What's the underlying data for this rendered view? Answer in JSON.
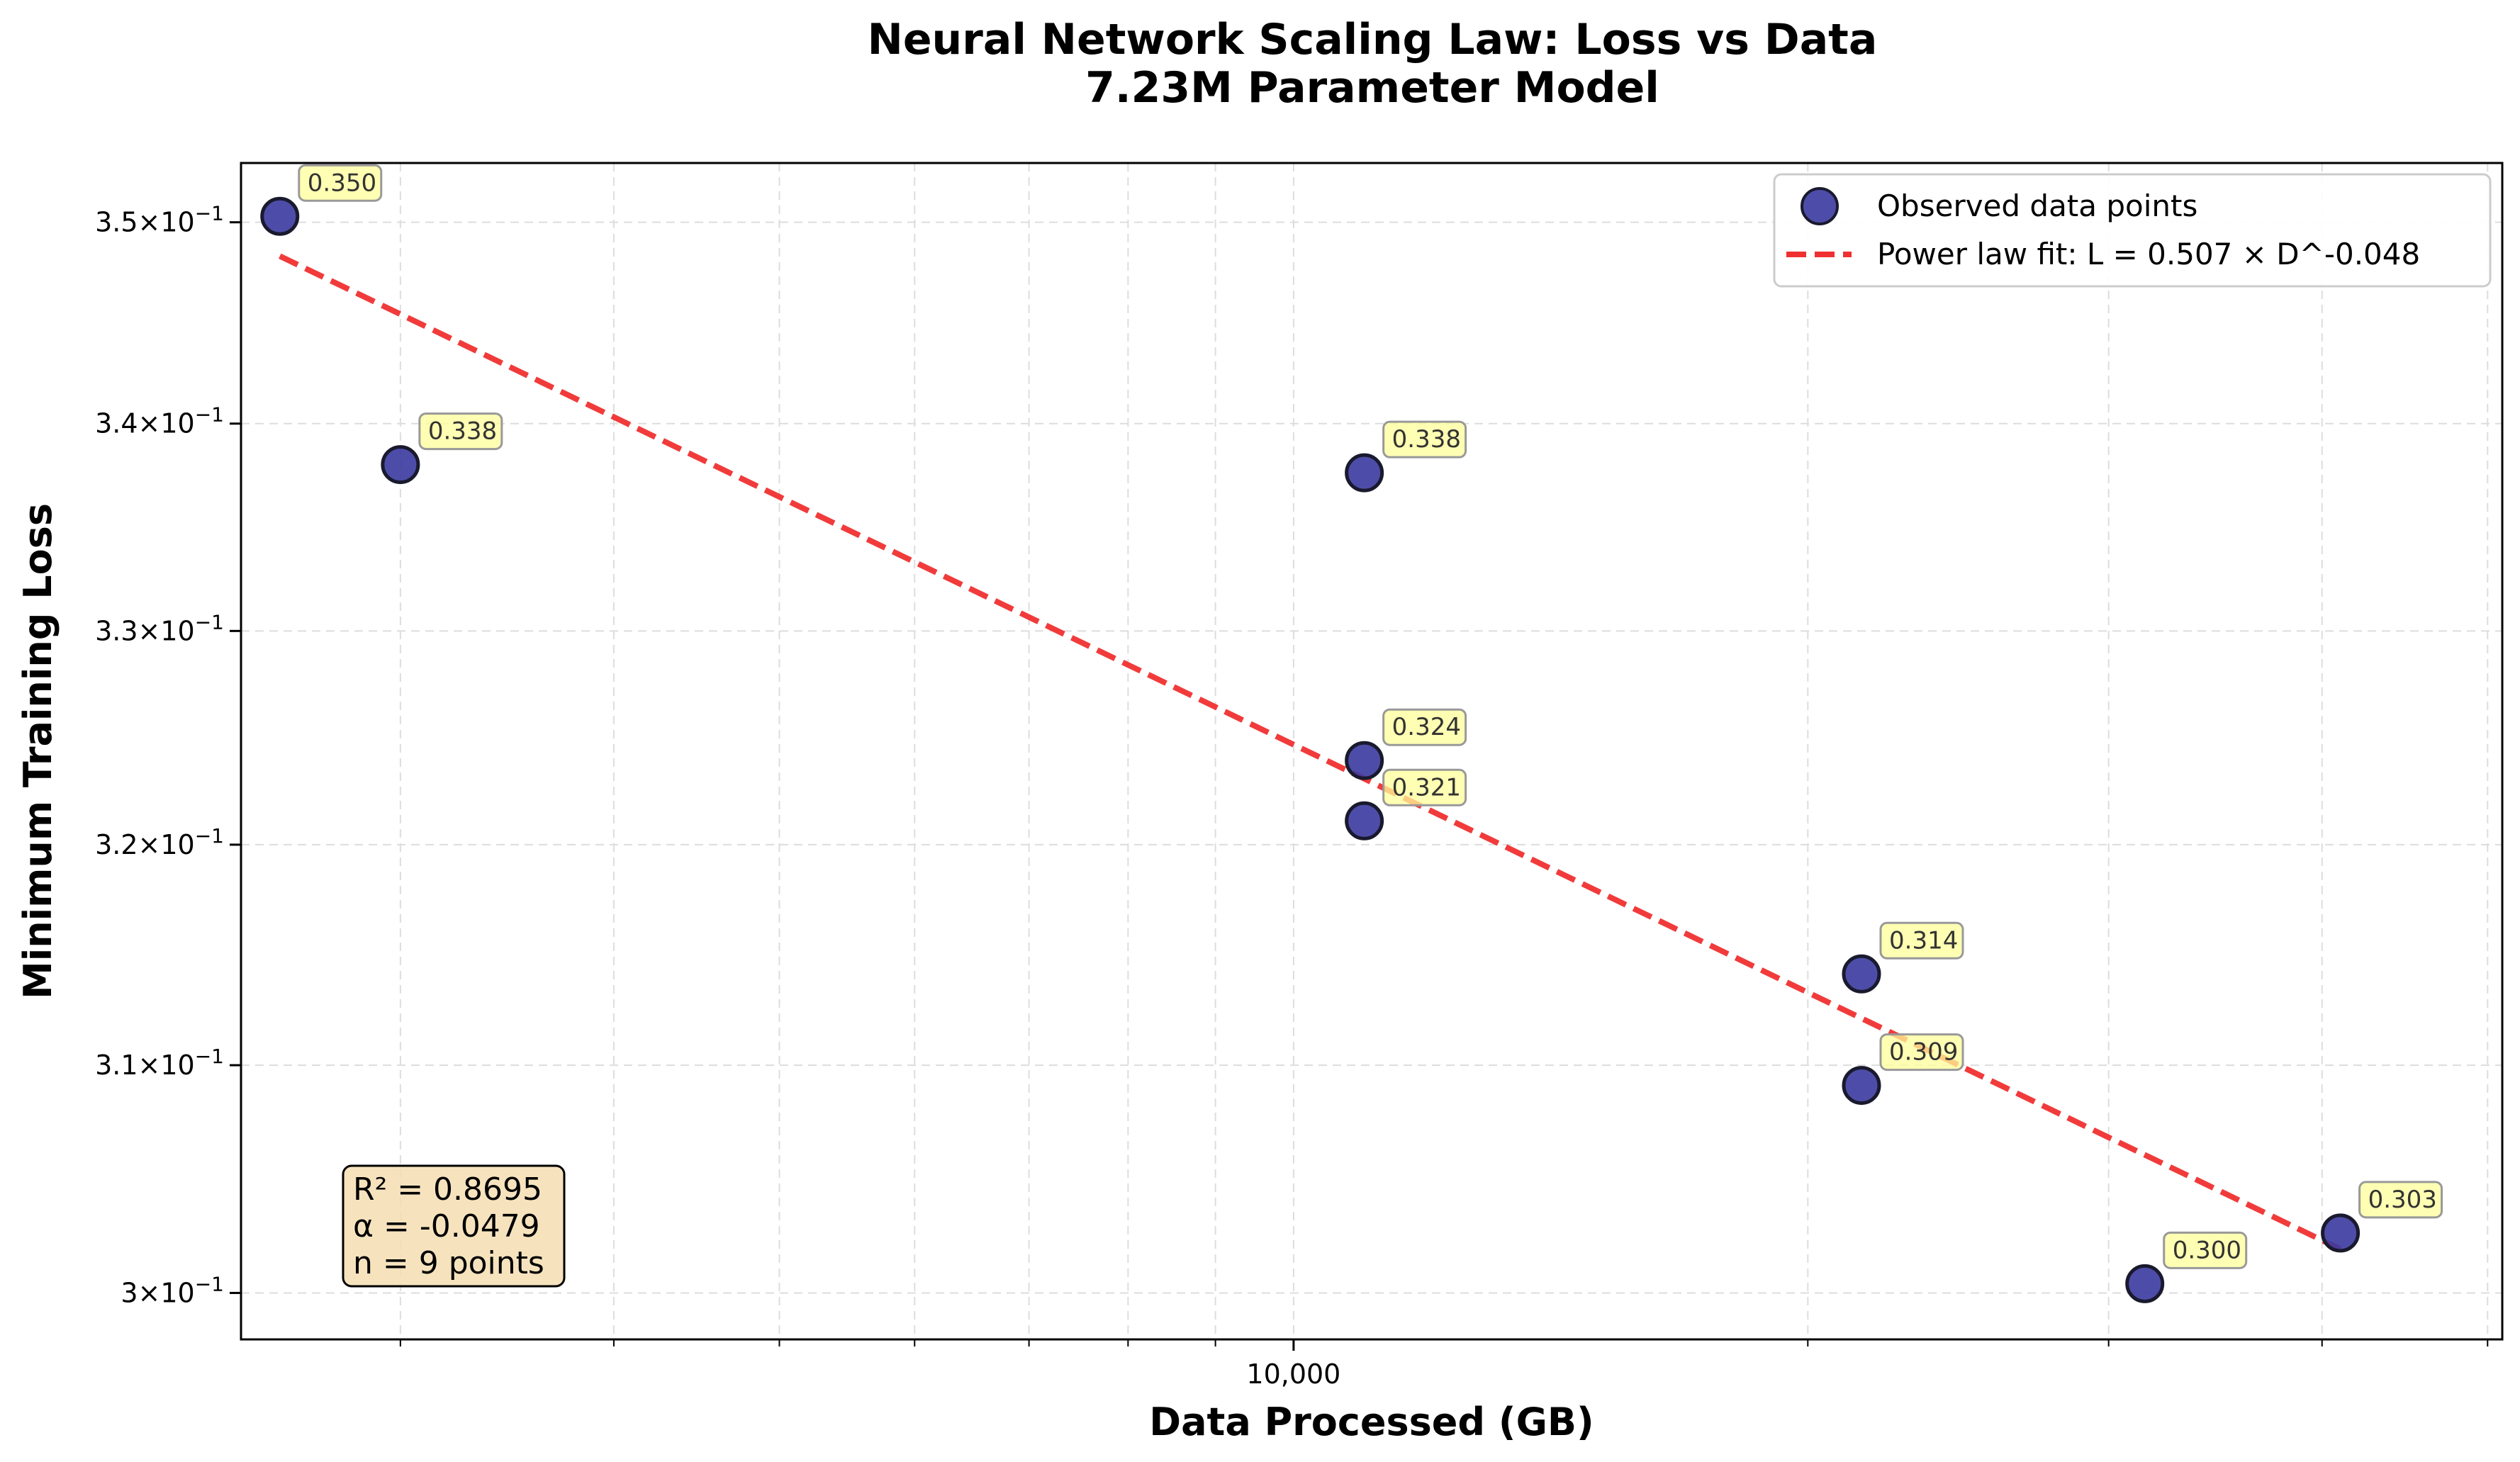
{
  "chart_data": {
    "type": "scatter",
    "title": "Neural Network Scaling Law: Loss vs Data",
    "subtitle": "7.23M Parameter Model",
    "xlabel": "Data Processed (GB)",
    "ylabel": "Minimum Training Loss",
    "xscale": "log",
    "yscale": "log",
    "xlim": [
      2420,
      51000
    ],
    "ylim": [
      0.298,
      0.353
    ],
    "x_tick_labels": [
      {
        "value": 10000,
        "label": "10,000"
      }
    ],
    "x_minor_ticks": [
      3000,
      4000,
      5000,
      6000,
      7000,
      8000,
      9000,
      20000,
      30000,
      40000,
      50000
    ],
    "y_ticks": [
      {
        "value": 0.3,
        "mant": "3",
        "exp": "−1"
      },
      {
        "value": 0.31,
        "mant": "3.1",
        "exp": "−1"
      },
      {
        "value": 0.32,
        "mant": "3.2",
        "exp": "−1"
      },
      {
        "value": 0.33,
        "mant": "3.3",
        "exp": "−1"
      },
      {
        "value": 0.34,
        "mant": "3.4",
        "exp": "−1"
      },
      {
        "value": 0.35,
        "mant": "3.5",
        "exp": "−1"
      }
    ],
    "grid": true,
    "legend_position": "top-right",
    "series": [
      {
        "name": "Observed data points",
        "kind": "scatter",
        "color": "#3a3aa0",
        "edge_color": "#1a1a2e",
        "x": [
          2550,
          3000,
          11000,
          11000,
          11000,
          21500,
          21500,
          31500,
          41000
        ],
        "y": [
          0.3503,
          0.338,
          0.3376,
          0.3239,
          0.3211,
          0.3141,
          0.3091,
          0.3004,
          0.3026
        ],
        "labels": [
          "0.350",
          "0.338",
          "0.338",
          "0.324",
          "0.321",
          "0.314",
          "0.309",
          "0.300",
          "0.303"
        ]
      },
      {
        "name": "Power law fit: L = 0.507 × D^-0.048",
        "kind": "line",
        "color": "#f03030",
        "dash": "dashed",
        "x": [
          2550,
          41000
        ],
        "y": [
          0.3483,
          0.3019
        ]
      }
    ],
    "stats_box": {
      "lines": [
        "R² = 0.8695",
        "α = -0.0479",
        "n = 9 points"
      ],
      "fill": "#f5deb3"
    },
    "annotation_fill": "#ffff99"
  }
}
